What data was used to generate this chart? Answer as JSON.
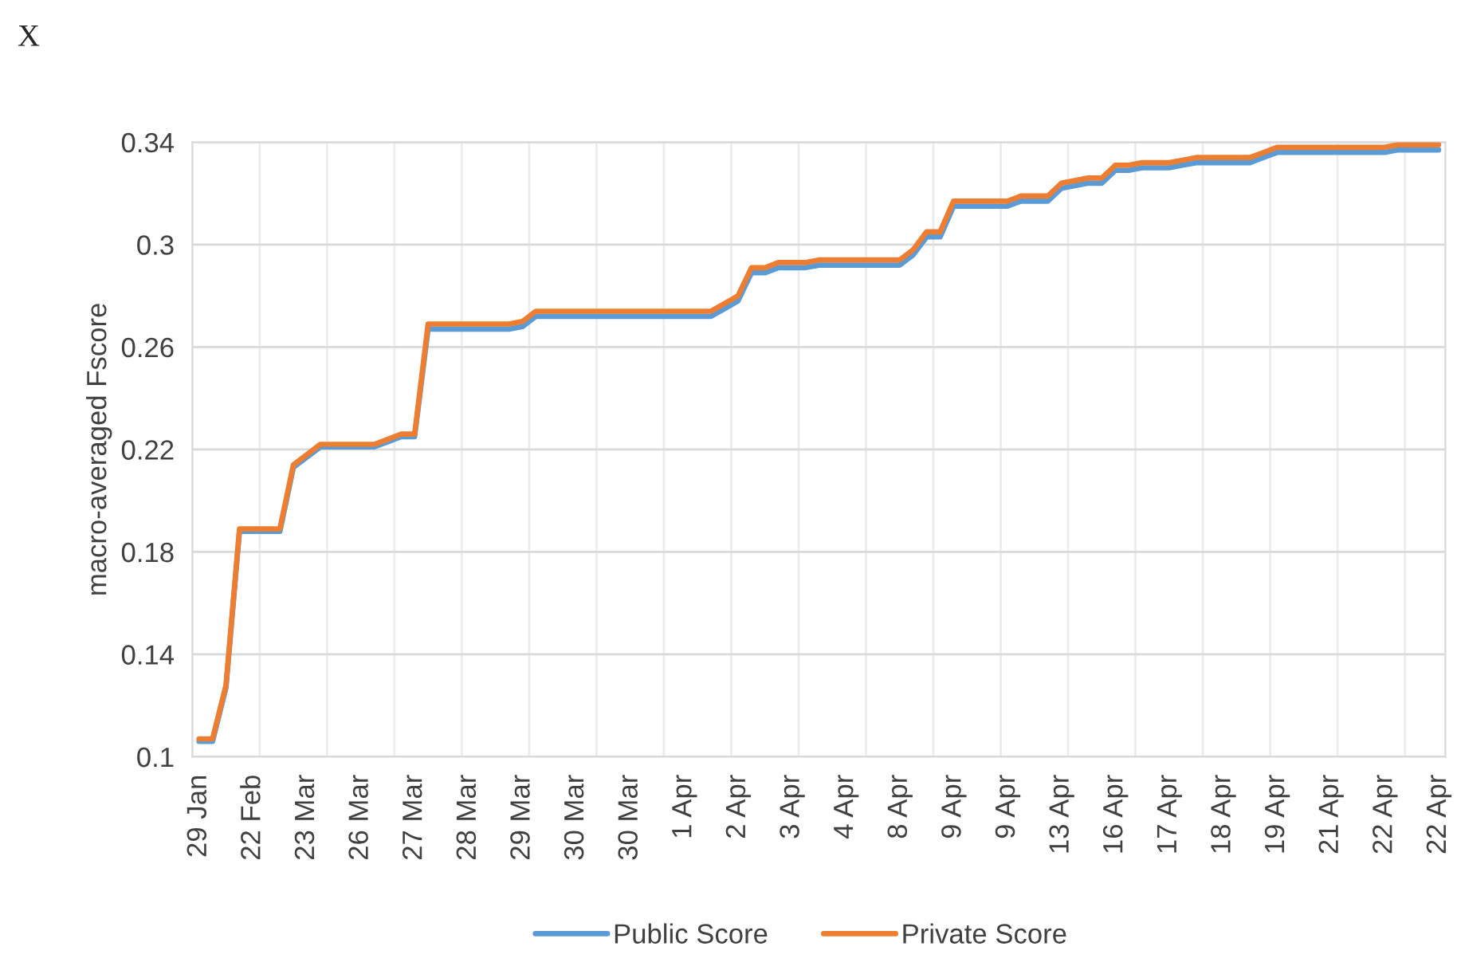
{
  "chart_data": {
    "type": "line",
    "title": "X",
    "ylabel": "macro-averaged Fscore",
    "categories": [
      "29 Jan",
      null,
      null,
      null,
      "22 Feb",
      null,
      null,
      null,
      "23 Mar",
      null,
      null,
      null,
      "26 Mar",
      null,
      null,
      null,
      "27 Mar",
      null,
      null,
      null,
      "28 Mar",
      null,
      null,
      null,
      "29 Mar",
      null,
      null,
      null,
      "30 Mar",
      null,
      null,
      null,
      "30 Mar",
      null,
      null,
      null,
      "1 Apr",
      null,
      null,
      null,
      "2 Apr",
      null,
      null,
      null,
      "3 Apr",
      null,
      null,
      null,
      "4 Apr",
      null,
      null,
      null,
      "8 Apr",
      null,
      null,
      null,
      "9 Apr",
      null,
      null,
      null,
      "9 Apr",
      null,
      null,
      null,
      "13 Apr",
      null,
      null,
      null,
      "16 Apr",
      null,
      null,
      null,
      "17 Apr",
      null,
      null,
      null,
      "18 Apr",
      null,
      null,
      null,
      "19 Apr",
      null,
      null,
      null,
      "21 Apr",
      null,
      null,
      null,
      "22 Apr",
      null,
      null,
      null,
      "22 Apr"
    ],
    "series": [
      {
        "name": "Public Score",
        "color": "#5b9bd5",
        "values": [
          0.106,
          0.106,
          0.127,
          0.188,
          0.188,
          0.188,
          0.188,
          0.213,
          0.217,
          0.221,
          0.221,
          0.221,
          0.221,
          0.221,
          0.223,
          0.225,
          0.225,
          0.267,
          0.267,
          0.267,
          0.267,
          0.267,
          0.267,
          0.267,
          0.268,
          0.272,
          0.272,
          0.272,
          0.272,
          0.272,
          0.272,
          0.272,
          0.272,
          0.272,
          0.272,
          0.272,
          0.272,
          0.272,
          0.272,
          0.275,
          0.278,
          0.289,
          0.289,
          0.291,
          0.291,
          0.291,
          0.292,
          0.292,
          0.292,
          0.292,
          0.292,
          0.292,
          0.292,
          0.296,
          0.303,
          0.303,
          0.315,
          0.315,
          0.315,
          0.315,
          0.315,
          0.317,
          0.317,
          0.317,
          0.322,
          0.323,
          0.324,
          0.324,
          0.329,
          0.329,
          0.33,
          0.33,
          0.33,
          0.331,
          0.332,
          0.332,
          0.332,
          0.332,
          0.332,
          0.334,
          0.336,
          0.336,
          0.336,
          0.336,
          0.336,
          0.336,
          0.336,
          0.336,
          0.336,
          0.337,
          0.337,
          0.337,
          0.337
        ]
      },
      {
        "name": "Private Score",
        "color": "#ed7d31",
        "values": [
          0.107,
          0.107,
          0.128,
          0.189,
          0.189,
          0.189,
          0.189,
          0.214,
          0.218,
          0.222,
          0.222,
          0.222,
          0.222,
          0.222,
          0.224,
          0.226,
          0.226,
          0.269,
          0.269,
          0.269,
          0.269,
          0.269,
          0.269,
          0.269,
          0.27,
          0.274,
          0.274,
          0.274,
          0.274,
          0.274,
          0.274,
          0.274,
          0.274,
          0.274,
          0.274,
          0.274,
          0.274,
          0.274,
          0.274,
          0.277,
          0.28,
          0.291,
          0.291,
          0.293,
          0.293,
          0.293,
          0.294,
          0.294,
          0.294,
          0.294,
          0.294,
          0.294,
          0.294,
          0.298,
          0.305,
          0.305,
          0.317,
          0.317,
          0.317,
          0.317,
          0.317,
          0.319,
          0.319,
          0.319,
          0.324,
          0.325,
          0.326,
          0.326,
          0.331,
          0.331,
          0.332,
          0.332,
          0.332,
          0.333,
          0.334,
          0.334,
          0.334,
          0.334,
          0.334,
          0.336,
          0.338,
          0.338,
          0.338,
          0.338,
          0.338,
          0.338,
          0.338,
          0.338,
          0.338,
          0.339,
          0.339,
          0.339,
          0.339
        ]
      }
    ],
    "ylim": [
      0.1,
      0.34
    ],
    "yticks": [
      0.1,
      0.14,
      0.18,
      0.22,
      0.26,
      0.3,
      0.34
    ],
    "grid": true,
    "legend": "bottom",
    "marker": "none",
    "line_style": "solid"
  }
}
